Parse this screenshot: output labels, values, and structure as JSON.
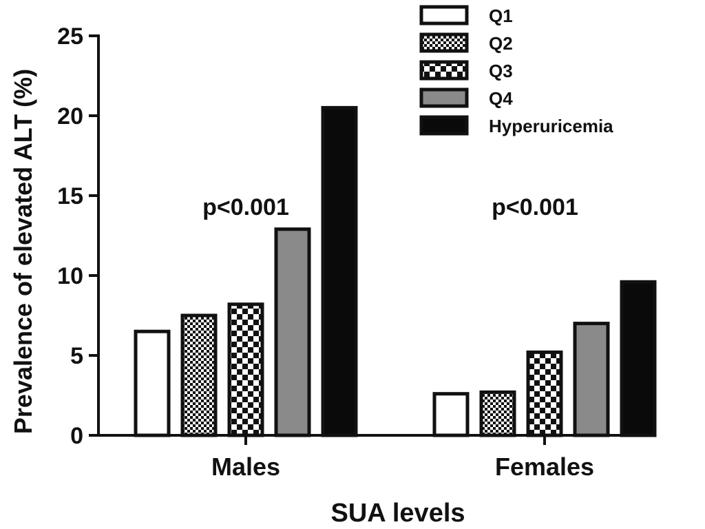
{
  "chart_data": {
    "type": "bar",
    "title": "",
    "xlabel": "SUA levels",
    "ylabel": "Prevalence of elevated ALT (%)",
    "ylim": [
      0,
      25
    ],
    "yticks": [
      "0",
      "5",
      "10",
      "15",
      "20",
      "25"
    ],
    "categories": [
      "Males",
      "Females"
    ],
    "series": [
      {
        "name": "Q1",
        "values": [
          6.5,
          2.6
        ],
        "pattern": "white"
      },
      {
        "name": "Q2",
        "values": [
          7.5,
          2.7
        ],
        "pattern": "fine-check"
      },
      {
        "name": "Q3",
        "values": [
          8.2,
          5.2
        ],
        "pattern": "coarse-check"
      },
      {
        "name": "Q4",
        "values": [
          12.9,
          7.0
        ],
        "pattern": "gray"
      },
      {
        "name": "Hyperuricemia",
        "values": [
          20.5,
          9.6
        ],
        "pattern": "black"
      }
    ],
    "annotations": [
      "p<0.001",
      "p<0.001"
    ],
    "legend_position": "top-right",
    "colors": {
      "axis": "#111111",
      "gray": "#8a8a8a",
      "black": "#0a0a0a",
      "white": "#ffffff"
    }
  }
}
